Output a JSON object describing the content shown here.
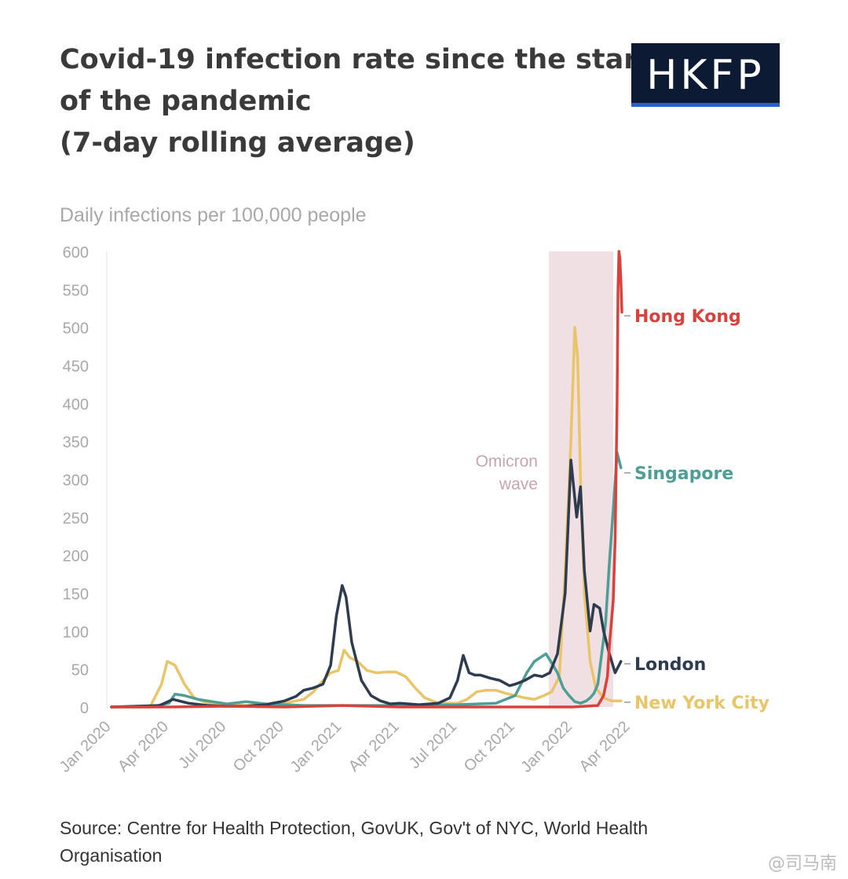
{
  "header": {
    "title_lines": [
      "Covid-19 infection rate since the start",
      "of the pandemic",
      "(7-day rolling average)"
    ],
    "logo_text": "HKFP"
  },
  "subtitle": "Daily infections per 100,000 people",
  "source": "Source: Centre for Health Protection, GovUK, Gov't of NYC, World Health Organisation",
  "watermark": "@司马南",
  "colors": {
    "hong_kong": "#d9423c",
    "singapore": "#4f9e96",
    "london": "#2e3c4f",
    "new_york_city": "#e9c569",
    "omicron_band": "#f0dfe3",
    "omicron_text": "#c8a6ae",
    "axis_text": "#a8a8a8"
  },
  "chart_data": {
    "type": "line",
    "title": "Covid-19 infection rate since the start of the pandemic (7-day rolling average)",
    "ylabel": "Daily infections per 100,000 people",
    "xlabel": "",
    "ylim": [
      0,
      600
    ],
    "xlim": [
      0,
      27
    ],
    "x_unit": "months since Jan 2020",
    "yticks": [
      0,
      50,
      100,
      150,
      200,
      250,
      300,
      350,
      400,
      450,
      500,
      550,
      600
    ],
    "xticks": [
      {
        "x": 0,
        "label": "Jan 2020"
      },
      {
        "x": 3,
        "label": "Apr 2020"
      },
      {
        "x": 6,
        "label": "Jul 2020"
      },
      {
        "x": 9,
        "label": "Oct 2020"
      },
      {
        "x": 12,
        "label": "Jan 2021"
      },
      {
        "x": 15,
        "label": "Apr 2021"
      },
      {
        "x": 18,
        "label": "Jul 2021"
      },
      {
        "x": 21,
        "label": "Oct 2021"
      },
      {
        "x": 24,
        "label": "Jan 2022"
      },
      {
        "x": 27,
        "label": "Apr 2022"
      }
    ],
    "grid": false,
    "annotations": [
      {
        "type": "band",
        "x_from": 22.75,
        "x_to": 26.1,
        "label_lines": [
          "Omicron",
          "wave"
        ]
      }
    ],
    "series": [
      {
        "name": "Hong Kong",
        "color_key": "hong_kong",
        "x": [
          0,
          3,
          6,
          9,
          12,
          15,
          18,
          21,
          24,
          25.3,
          25.6,
          25.8,
          25.9,
          26.0,
          26.1,
          26.2,
          26.3,
          26.35,
          26.4,
          26.45,
          26.5,
          26.55
        ],
        "y": [
          0,
          0,
          1,
          0,
          2,
          0,
          0,
          0,
          0,
          2,
          15,
          40,
          80,
          110,
          140,
          220,
          400,
          550,
          600,
          590,
          560,
          520
        ]
      },
      {
        "name": "Singapore",
        "color_key": "singapore",
        "x": [
          0,
          2,
          3,
          3.3,
          3.8,
          4.5,
          5.5,
          6,
          7,
          8,
          10,
          12,
          15,
          18,
          20,
          21,
          21.3,
          21.6,
          22,
          22.3,
          22.6,
          22.9,
          23.2,
          23.5,
          23.8,
          24.1,
          24.4,
          24.7,
          24.9,
          25.1,
          25.3,
          25.5,
          25.7,
          25.9,
          26.1,
          26.3,
          26.5
        ],
        "y": [
          0,
          0,
          5,
          17,
          15,
          10,
          6,
          4,
          7,
          4,
          2,
          2,
          2,
          3,
          5,
          15,
          30,
          45,
          60,
          65,
          70,
          58,
          45,
          25,
          15,
          7,
          5,
          8,
          12,
          18,
          30,
          70,
          110,
          190,
          260,
          335,
          315
        ]
      },
      {
        "name": "London",
        "color_key": "london",
        "x": [
          0,
          2.5,
          3.2,
          4,
          5,
          6,
          7,
          8,
          9,
          9.6,
          10,
          10.5,
          11,
          11.4,
          11.7,
          12.0,
          12.2,
          12.5,
          13,
          13.5,
          14,
          14.5,
          15,
          16,
          17,
          17.6,
          18,
          18.3,
          18.6,
          18.9,
          19.2,
          19.7,
          20.2,
          20.7,
          21,
          21.5,
          22,
          22.4,
          22.8,
          23.2,
          23.6,
          23.9,
          24.2,
          24.4,
          24.6,
          24.9,
          25.1,
          25.4,
          25.6,
          25.9,
          26.2,
          26.5
        ],
        "y": [
          0,
          2,
          10,
          5,
          2,
          1,
          1,
          3,
          8,
          14,
          22,
          25,
          30,
          55,
          120,
          160,
          145,
          85,
          35,
          15,
          8,
          4,
          5,
          3,
          5,
          12,
          35,
          68,
          45,
          42,
          42,
          38,
          35,
          28,
          30,
          35,
          42,
          40,
          45,
          70,
          150,
          325,
          250,
          290,
          180,
          100,
          135,
          130,
          100,
          70,
          45,
          60
        ]
      },
      {
        "name": "New York City",
        "color_key": "new_york_city",
        "x": [
          0,
          2,
          2.6,
          2.9,
          3.3,
          3.8,
          4.3,
          5,
          6,
          7,
          8,
          9,
          10,
          10.5,
          11,
          11.4,
          11.8,
          12.1,
          12.4,
          12.8,
          13.3,
          13.8,
          14.3,
          14.8,
          15.3,
          15.8,
          16.3,
          17,
          18,
          18.5,
          19,
          19.5,
          20,
          20.5,
          21,
          21.5,
          22,
          22.5,
          22.9,
          23.3,
          23.6,
          23.9,
          24.1,
          24.25,
          24.4,
          24.6,
          24.9,
          25.2,
          25.6,
          26.0,
          26.5
        ],
        "y": [
          0,
          0,
          30,
          60,
          55,
          30,
          12,
          5,
          3,
          2,
          3,
          5,
          10,
          20,
          35,
          45,
          48,
          75,
          65,
          60,
          48,
          45,
          46,
          46,
          40,
          25,
          12,
          5,
          5,
          10,
          20,
          22,
          22,
          18,
          15,
          12,
          10,
          15,
          20,
          40,
          180,
          350,
          500,
          460,
          300,
          150,
          60,
          25,
          12,
          8,
          8
        ]
      }
    ]
  }
}
